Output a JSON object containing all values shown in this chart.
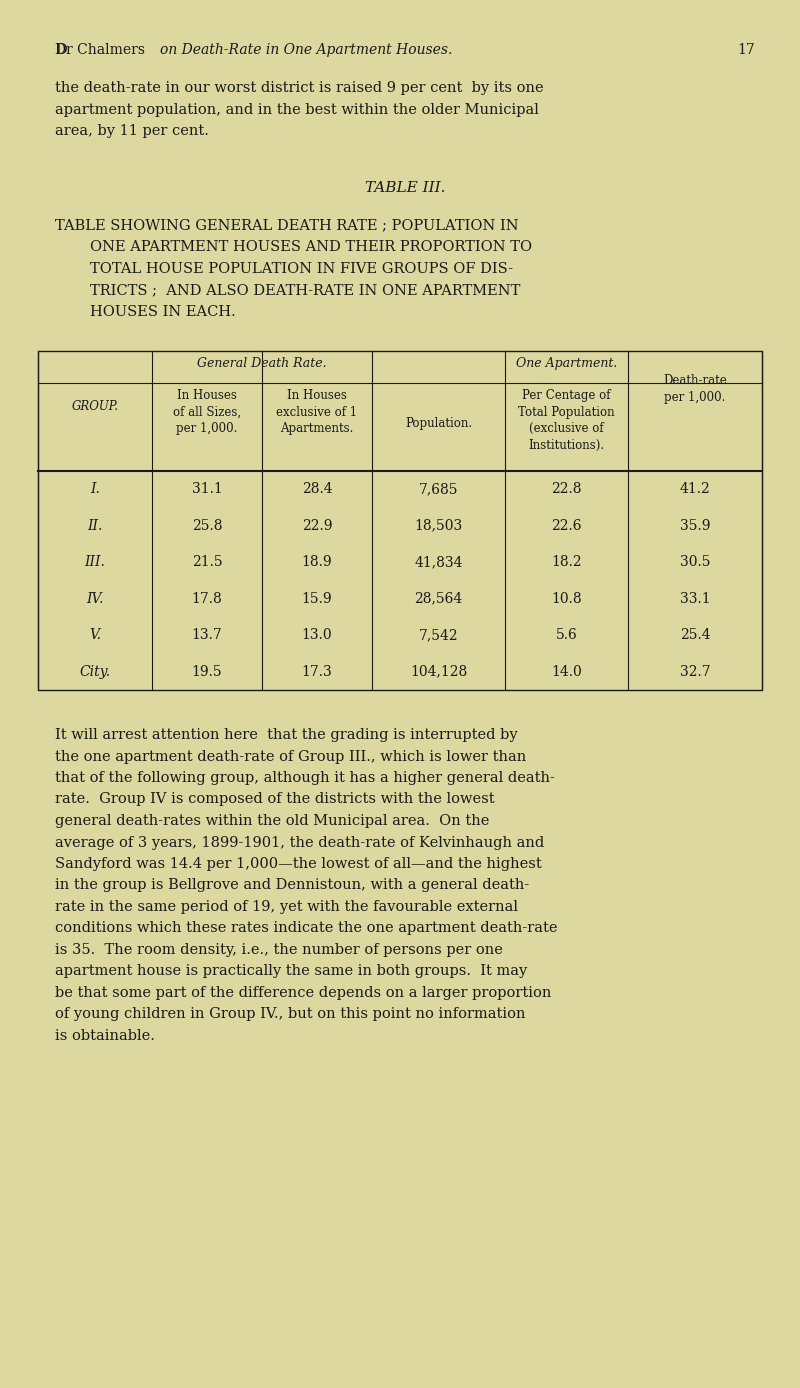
{
  "bg_color": "#ddd8a0",
  "text_color": "#1a1a1a",
  "page_width": 8.0,
  "page_height": 13.88,
  "header_normal": "Dr Chalmers ",
  "header_italic": "on Death-Rate in One Apartment Houses.",
  "header_page": "17",
  "para1_lines": [
    "the death-rate in our worst district is raised 9 per cent  by its one",
    "apartment population, and in the best within the older Municipal",
    "area, by 11 per cent."
  ],
  "table_title": "TABLE III.",
  "table_caption_lines": [
    "TABLE SHOWING GENERAL DEATH RATE ; POPULATION IN",
    "ONE APARTMENT HOUSES AND THEIR PROPORTION TO",
    "TOTAL HOUSE POPULATION IN FIVE GROUPS OF DIS-",
    "TRICTS ;  AND ALSO DEATH-RATE IN ONE APARTMENT",
    "HOUSES IN EACH."
  ],
  "table_caption_indent": [
    false,
    true,
    true,
    true,
    true
  ],
  "table_data": [
    [
      "I.",
      "31.1",
      "28.4",
      "7,685",
      "22.8",
      "41.2"
    ],
    [
      "II.",
      "25.8",
      "22.9",
      "18,503",
      "22.6",
      "35.9"
    ],
    [
      "III.",
      "21.5",
      "18.9",
      "41,834",
      "18.2",
      "30.5"
    ],
    [
      "IV.",
      "17.8",
      "15.9",
      "28,564",
      "10.8",
      "33.1"
    ],
    [
      "V.",
      "13.7",
      "13.0",
      "7,542",
      "5.6",
      "25.4"
    ],
    [
      "City.",
      "19.5",
      "17.3",
      "104,128",
      "14.0",
      "32.7"
    ]
  ],
  "para2_lines": [
    "It will arrest attention here  that the grading is interrupted by",
    "the one apartment death-rate of Group III., which is lower than",
    "that of the following group, although it has a higher general death-",
    "rate.  Group IV is composed of the districts with the lowest",
    "general death-rates within the old Municipal area.  On the",
    "average of 3 years, 1899-1901, the death-rate of Kelvinhaugh and",
    "Sandyford was 14.4 per 1,000—the lowest of all—and the highest",
    "in the group is Bellgrove and Dennistoun, with a general death-",
    "rate in the same period of 19, yet with the favourable external",
    "conditions which these rates indicate the one apartment death-rate",
    "is 35.  The room density, i.e., the number of persons per one",
    "apartment house is practically the same in both groups.  It may",
    "be that some part of the difference depends on a larger proportion",
    "of young children in Group IV., but on this point no information",
    "is obtainable."
  ]
}
